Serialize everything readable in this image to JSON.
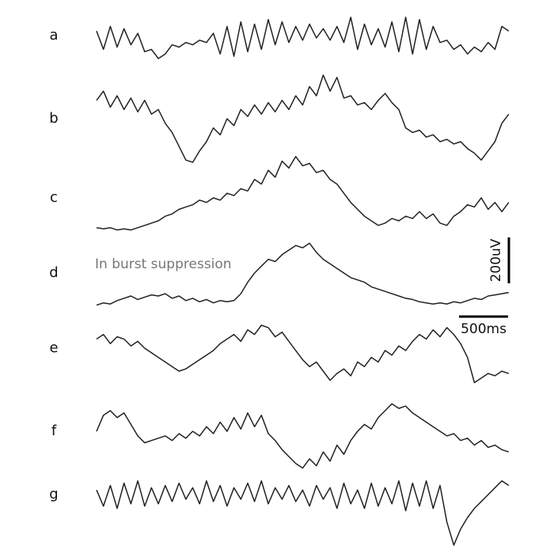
{
  "chart_data": {
    "type": "line",
    "annotation": "In burst suppression",
    "scale_bar": {
      "y": {
        "value": 200,
        "label": "200uV"
      },
      "x": {
        "value": 500,
        "label": "500ms"
      }
    },
    "x": [
      0,
      70,
      140,
      210,
      280,
      350,
      420,
      490,
      560,
      630,
      700,
      770,
      840,
      910,
      980,
      1050,
      1120,
      1190,
      1260,
      1330,
      1400,
      1470,
      1540,
      1610,
      1680,
      1750,
      1820,
      1890,
      1960,
      2030,
      2100,
      2170,
      2240,
      2310,
      2380,
      2450,
      2520,
      2590,
      2660,
      2730,
      2800,
      2870,
      2940,
      3010,
      3080,
      3150,
      3220,
      3290,
      3360,
      3430,
      3500,
      3570,
      3640,
      3710,
      3780,
      3850,
      3920,
      3990,
      4060,
      4130,
      4200
    ],
    "series": [
      {
        "name": "a",
        "color": "#222222",
        "values": [
          20,
          -60,
          40,
          -50,
          30,
          -40,
          10,
          -70,
          -60,
          -100,
          -80,
          -40,
          -50,
          -30,
          -40,
          -20,
          -30,
          10,
          -80,
          40,
          -90,
          60,
          -70,
          50,
          -60,
          70,
          -40,
          60,
          -30,
          40,
          -20,
          50,
          -10,
          30,
          -20,
          40,
          -30,
          80,
          -60,
          50,
          -40,
          30,
          -50,
          60,
          -70,
          80,
          -80,
          70,
          -60,
          40,
          -30,
          -20,
          -60,
          -40,
          -80,
          -50,
          -70,
          -30,
          -60,
          40,
          20
        ]
      },
      {
        "name": "b",
        "color": "#222222",
        "values": [
          80,
          120,
          50,
          100,
          40,
          90,
          30,
          80,
          20,
          40,
          -20,
          -60,
          -120,
          -180,
          -190,
          -140,
          -100,
          -40,
          -70,
          0,
          -30,
          40,
          10,
          60,
          20,
          70,
          30,
          80,
          40,
          100,
          60,
          140,
          100,
          190,
          120,
          180,
          90,
          100,
          60,
          70,
          40,
          80,
          110,
          70,
          40,
          -40,
          -60,
          -50,
          -80,
          -70,
          -100,
          -90,
          -110,
          -100,
          -130,
          -150,
          -180,
          -140,
          -100,
          -20,
          20
        ]
      },
      {
        "name": "c",
        "color": "#222222",
        "values": [
          -130,
          -135,
          -130,
          -140,
          -135,
          -140,
          -130,
          -120,
          -110,
          -100,
          -80,
          -70,
          -50,
          -40,
          -30,
          -10,
          -20,
          0,
          -10,
          20,
          10,
          40,
          30,
          80,
          60,
          120,
          90,
          160,
          130,
          180,
          140,
          150,
          110,
          120,
          80,
          60,
          20,
          -20,
          -50,
          -80,
          -100,
          -120,
          -110,
          -90,
          -100,
          -80,
          -90,
          -60,
          -90,
          -70,
          -110,
          -120,
          -80,
          -60,
          -30,
          -40,
          0,
          -50,
          -20,
          -60,
          -20
        ]
      },
      {
        "name": "d",
        "color": "#222222",
        "values": [
          -140,
          -130,
          -135,
          -120,
          -110,
          -100,
          -115,
          -105,
          -95,
          -100,
          -90,
          -110,
          -100,
          -120,
          -110,
          -125,
          -115,
          -130,
          -120,
          -125,
          -120,
          -90,
          -40,
          0,
          30,
          60,
          50,
          80,
          100,
          120,
          110,
          130,
          90,
          60,
          40,
          20,
          0,
          -20,
          -30,
          -40,
          -60,
          -70,
          -80,
          -90,
          -100,
          -110,
          -115,
          -125,
          -130,
          -135,
          -130,
          -135,
          -125,
          -130,
          -120,
          -110,
          -115,
          -100,
          -95,
          -90,
          -85
        ]
      },
      {
        "name": "e",
        "color": "#222222",
        "values": [
          40,
          60,
          20,
          50,
          40,
          10,
          30,
          0,
          -20,
          -40,
          -60,
          -80,
          -100,
          -90,
          -70,
          -50,
          -30,
          -10,
          20,
          40,
          60,
          30,
          80,
          60,
          100,
          90,
          50,
          70,
          30,
          -10,
          -50,
          -80,
          -60,
          -100,
          -140,
          -110,
          -90,
          -120,
          -60,
          -80,
          -40,
          -60,
          -10,
          -30,
          10,
          -10,
          30,
          60,
          40,
          80,
          50,
          90,
          60,
          20,
          -40,
          -150,
          -130,
          -110,
          -120,
          -100,
          -110
        ]
      },
      {
        "name": "f",
        "color": "#222222",
        "values": [
          0,
          70,
          90,
          60,
          80,
          30,
          -20,
          -50,
          -40,
          -30,
          -20,
          -40,
          -10,
          -30,
          0,
          -20,
          20,
          -10,
          40,
          0,
          60,
          10,
          80,
          20,
          70,
          -10,
          -40,
          -80,
          -110,
          -140,
          -160,
          -120,
          -150,
          -90,
          -130,
          -60,
          -100,
          -40,
          0,
          30,
          10,
          60,
          90,
          120,
          100,
          110,
          80,
          60,
          40,
          20,
          0,
          -20,
          -10,
          -40,
          -30,
          -60,
          -40,
          -70,
          -60,
          -80,
          -90
        ]
      },
      {
        "name": "g",
        "color": "#222222",
        "values": [
          20,
          -50,
          40,
          -60,
          50,
          -40,
          60,
          -50,
          30,
          -40,
          40,
          -30,
          50,
          -20,
          30,
          -40,
          60,
          -30,
          40,
          -50,
          30,
          -20,
          50,
          -30,
          60,
          -40,
          30,
          -20,
          40,
          -30,
          20,
          -50,
          40,
          -20,
          30,
          -60,
          50,
          -40,
          20,
          -60,
          50,
          -50,
          30,
          -40,
          60,
          -70,
          50,
          -50,
          60,
          -60,
          40,
          -120,
          -220,
          -150,
          -100,
          -60,
          -30,
          0,
          30,
          60,
          40
        ]
      }
    ]
  }
}
